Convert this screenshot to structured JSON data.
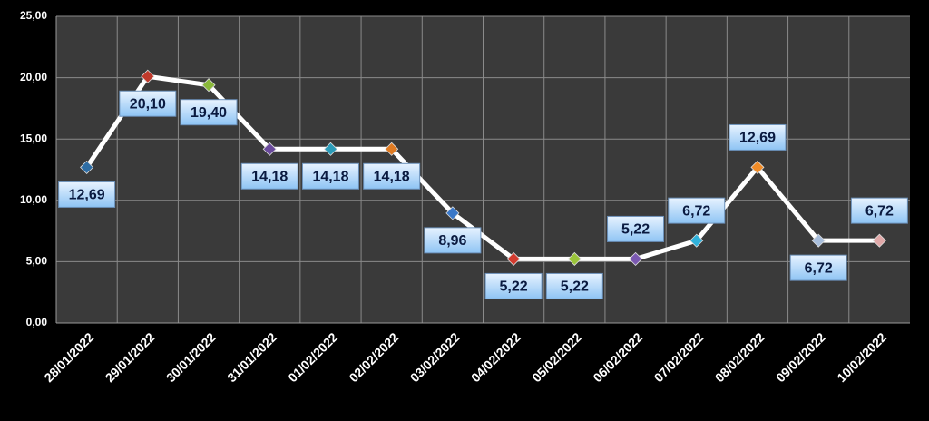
{
  "chart_data": {
    "type": "line",
    "categories": [
      "28/01/2022",
      "29/01/2022",
      "30/01/2022",
      "31/01/2022",
      "01/02/2022",
      "02/02/2022",
      "03/02/2022",
      "04/02/2022",
      "05/02/2022",
      "06/02/2022",
      "07/02/2022",
      "08/02/2022",
      "09/02/2022",
      "10/02/2022"
    ],
    "values": [
      12.69,
      20.1,
      19.4,
      14.18,
      14.18,
      14.18,
      8.96,
      5.22,
      5.22,
      5.22,
      6.72,
      12.69,
      6.72,
      6.72
    ],
    "value_labels": [
      "12,69",
      "20,10",
      "19,40",
      "14,18",
      "14,18",
      "14,18",
      "8,96",
      "5,22",
      "5,22",
      "5,22",
      "6,72",
      "12,69",
      "6,72",
      "6,72"
    ],
    "colors": [
      "#2e6da4",
      "#c0392b",
      "#8ab83a",
      "#6a4a9c",
      "#2a9bb8",
      "#e07b22",
      "#3a78c8",
      "#d23a2e",
      "#9ac43a",
      "#7a58b0",
      "#30b2dc",
      "#f08c28",
      "#a8bedc",
      "#e0a8a8"
    ],
    "line_color": "#ffffff",
    "ylim": [
      0,
      25
    ],
    "yticks": [
      {
        "value": 0,
        "label": "0,00"
      },
      {
        "value": 5,
        "label": "5,00"
      },
      {
        "value": 10,
        "label": "10,00"
      },
      {
        "value": 15,
        "label": "15,00"
      },
      {
        "value": 20,
        "label": "20,00"
      },
      {
        "value": 25,
        "label": "25,00"
      }
    ],
    "grid": true
  }
}
